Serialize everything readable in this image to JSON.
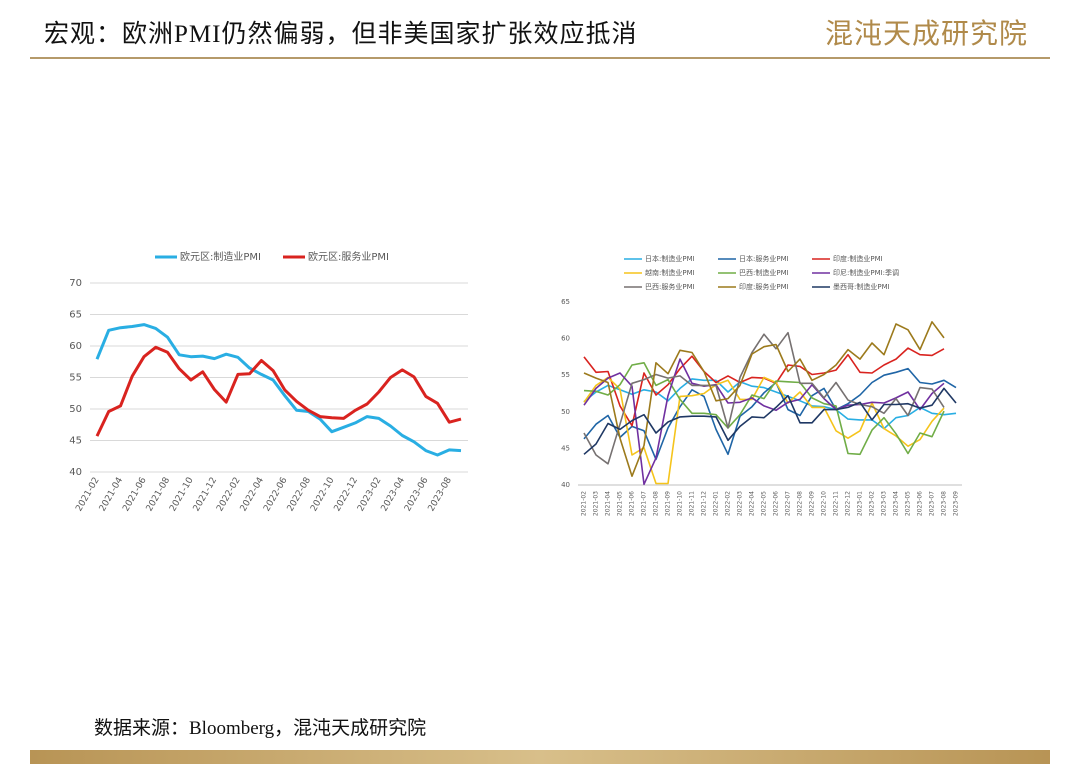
{
  "header": {
    "title": "宏观：欧洲PMI仍然偏弱，但非美国家扩张效应抵消",
    "logo": "混沌天成研究院"
  },
  "footer": {
    "source": "数据来源：Bloomberg，混沌天成研究院"
  },
  "chart_data": [
    {
      "type": "line",
      "categories": [
        "2021-02",
        null,
        "2021-04",
        null,
        "2021-06",
        null,
        "2021-08",
        null,
        "2021-10",
        null,
        "2021-12",
        null,
        "2022-02",
        null,
        "2022-04",
        null,
        "2022-06",
        null,
        "2022-08",
        null,
        "2022-10",
        null,
        "2022-12",
        null,
        "2023-02",
        null,
        "2023-04",
        null,
        "2023-06",
        null,
        "2023-08",
        null
      ],
      "series": [
        {
          "name": "欧元区:制造业PMI",
          "color": "#29aee3",
          "values": [
            57.9,
            62.5,
            62.9,
            63.1,
            63.4,
            62.8,
            61.4,
            58.6,
            58.3,
            58.4,
            58.0,
            58.7,
            58.2,
            56.5,
            55.5,
            54.6,
            52.1,
            49.8,
            49.6,
            48.4,
            46.4,
            47.1,
            47.8,
            48.8,
            48.5,
            47.3,
            45.8,
            44.8,
            43.4,
            42.7,
            43.5,
            43.4
          ]
        },
        {
          "name": "欧元区:服务业PMI",
          "color": "#d9231f",
          "values": [
            45.7,
            49.6,
            50.5,
            55.2,
            58.3,
            59.8,
            59.0,
            56.4,
            54.6,
            55.9,
            53.1,
            51.1,
            55.5,
            55.6,
            57.7,
            56.1,
            53.0,
            51.2,
            49.8,
            48.8,
            48.6,
            48.5,
            49.8,
            50.8,
            52.7,
            55.0,
            56.2,
            55.1,
            52.0,
            50.9,
            47.9,
            48.4
          ]
        }
      ],
      "ylim": [
        40,
        70
      ],
      "yticks": [
        40,
        45,
        50,
        55,
        60,
        65,
        70
      ],
      "grid": true,
      "legend": "top"
    },
    {
      "type": "line",
      "categories": [
        "2021-02",
        "2021-03",
        "2021-04",
        "2021-05",
        "2021-06",
        "2021-07",
        "2021-08",
        "2021-09",
        "2021-10",
        "2021-11",
        "2021-12",
        "2022-01",
        "2022-02",
        "2022-03",
        "2022-04",
        "2022-05",
        "2022-06",
        "2022-07",
        "2022-08",
        "2022-09",
        "2022-10",
        "2022-11",
        "2022-12",
        "2023-01",
        "2023-02",
        "2023-03",
        "2023-04",
        "2023-05",
        "2023-06",
        "2023-07",
        "2023-08",
        "2023-09"
      ],
      "series": [
        {
          "name": "日本:制造业PMI",
          "color": "#29aee3",
          "values": [
            51.4,
            52.7,
            53.6,
            53.0,
            52.4,
            53.0,
            52.7,
            51.5,
            53.2,
            54.5,
            54.3,
            54.3,
            52.7,
            54.1,
            53.5,
            53.3,
            52.7,
            52.1,
            51.5,
            50.8,
            50.7,
            50.3,
            49.0,
            48.9,
            48.9,
            47.7,
            49.2,
            49.5,
            50.6,
            49.8,
            49.6,
            49.8
          ]
        },
        {
          "name": "日本:服务业PMI",
          "color": "#1f65a6",
          "values": [
            46.3,
            48.3,
            49.5,
            46.5,
            48.0,
            47.4,
            43.5,
            47.8,
            50.7,
            53.0,
            52.1,
            47.6,
            44.2,
            49.4,
            50.7,
            52.6,
            54.0,
            50.3,
            49.5,
            52.2,
            53.2,
            50.3,
            51.1,
            52.3,
            54.0,
            55.0,
            55.4,
            55.9,
            54.0,
            53.8,
            54.3,
            53.3
          ]
        },
        {
          "name": "印度:制造业PMI",
          "color": "#d9231f",
          "values": [
            57.5,
            55.4,
            55.5,
            50.8,
            48.1,
            55.3,
            52.3,
            53.7,
            55.9,
            57.6,
            55.5,
            54.0,
            54.9,
            54.0,
            54.7,
            54.6,
            53.9,
            56.4,
            56.2,
            55.1,
            55.3,
            55.7,
            57.8,
            55.4,
            55.3,
            56.4,
            57.2,
            58.7,
            57.8,
            57.7,
            58.6,
            null
          ]
        },
        {
          "name": "越南:制造业PMI",
          "color": "#f5c41c",
          "values": [
            51.3,
            53.6,
            54.7,
            53.1,
            44.1,
            45.1,
            40.2,
            40.2,
            52.1,
            52.2,
            52.5,
            53.7,
            54.3,
            51.7,
            51.7,
            54.7,
            54.0,
            51.2,
            52.7,
            50.6,
            50.6,
            47.4,
            46.4,
            47.4,
            51.2,
            47.7,
            46.7,
            45.3,
            46.2,
            48.7,
            50.5,
            null
          ]
        },
        {
          "name": "巴西:制造业PMI",
          "color": "#70ad47",
          "values": [
            52.9,
            52.8,
            52.3,
            53.7,
            56.4,
            56.7,
            53.6,
            54.4,
            51.7,
            49.8,
            49.8,
            49.6,
            47.8,
            49.6,
            52.3,
            51.8,
            54.2,
            54.1,
            54.0,
            51.9,
            51.1,
            50.8,
            44.3,
            44.2,
            47.5,
            49.2,
            47.0,
            44.3,
            47.1,
            46.6,
            50.1,
            null
          ]
        },
        {
          "name": "印尼:制造业PMI:季调",
          "color": "#7030a0",
          "values": [
            50.9,
            53.2,
            54.6,
            55.3,
            53.5,
            40.1,
            43.7,
            52.2,
            57.2,
            53.9,
            53.5,
            53.7,
            51.2,
            51.3,
            51.9,
            50.8,
            50.2,
            51.3,
            51.7,
            53.7,
            51.8,
            50.3,
            50.9,
            51.0,
            51.3,
            51.2,
            51.9,
            52.7,
            50.3,
            52.5,
            53.9,
            null
          ]
        },
        {
          "name": "巴西:服务业PMI",
          "color": "#767171",
          "values": [
            47.1,
            44.1,
            42.9,
            48.3,
            53.9,
            54.4,
            55.1,
            54.6,
            54.9,
            53.6,
            53.6,
            53.6,
            47.8,
            54.7,
            58.1,
            60.6,
            58.6,
            60.8,
            53.9,
            53.9,
            51.9,
            54.0,
            51.6,
            51.0,
            50.7,
            49.8,
            51.8,
            49.5,
            53.3,
            53.1,
            50.6,
            null
          ]
        },
        {
          "name": "印度:服务业PMI",
          "color": "#9c7a1c",
          "values": [
            55.3,
            54.6,
            54.0,
            46.4,
            41.2,
            45.4,
            56.7,
            55.2,
            58.4,
            58.1,
            55.5,
            51.5,
            51.8,
            53.6,
            57.9,
            58.9,
            59.2,
            55.5,
            57.2,
            54.3,
            55.1,
            56.4,
            58.5,
            57.2,
            59.4,
            57.8,
            62.0,
            61.2,
            58.5,
            62.3,
            60.1,
            null
          ]
        },
        {
          "name": "墨西哥:制造业PMI",
          "color": "#1f3864",
          "values": [
            44.2,
            45.6,
            48.4,
            47.6,
            48.8,
            49.6,
            47.1,
            48.6,
            49.3,
            49.4,
            49.4,
            49.3,
            46.1,
            48.0,
            49.3,
            49.2,
            50.6,
            52.2,
            48.5,
            48.5,
            50.3,
            50.3,
            50.6,
            51.3,
            48.9,
            51.0,
            51.0,
            51.1,
            50.5,
            50.9,
            53.2,
            51.2
          ]
        }
      ],
      "ylim": [
        40,
        65
      ],
      "yticks": [
        40,
        45,
        50,
        55,
        60,
        65
      ],
      "grid": false,
      "legend": "top"
    }
  ]
}
